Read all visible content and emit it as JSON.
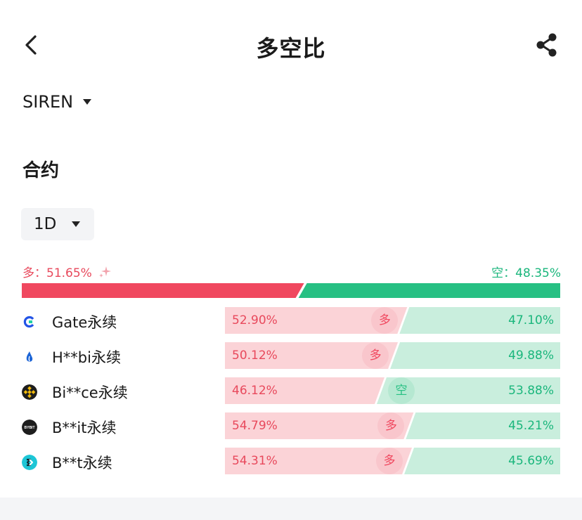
{
  "header": {
    "title": "多空比",
    "back_icon": "chevron-left-icon",
    "share_icon": "share-icon"
  },
  "symbol": {
    "value": "SIREN"
  },
  "section_title": "合约",
  "period": {
    "value": "1D"
  },
  "colors": {
    "long": "#f0485f",
    "short": "#27c083",
    "long_light": "#fbd3d7",
    "short_light": "#c9eedd"
  },
  "summary": {
    "long_label": "多：51.65%",
    "short_label": "空：48.35%",
    "long_ratio": 0.5165
  },
  "exchanges": [
    {
      "name": "Gate永续",
      "icon": "gate-logo-icon",
      "long_text": "52.90%",
      "short_text": "47.10%",
      "long_ratio": 0.529,
      "badge": "多"
    },
    {
      "name": "H**bi永续",
      "icon": "huobi-logo-icon",
      "long_text": "50.12%",
      "short_text": "49.88%",
      "long_ratio": 0.5012,
      "badge": "多"
    },
    {
      "name": "Bi**ce永续",
      "icon": "binance-logo-icon",
      "long_text": "46.12%",
      "short_text": "53.88%",
      "long_ratio": 0.4612,
      "badge": "空"
    },
    {
      "name": "B**it永续",
      "icon": "bybit-logo-icon",
      "long_text": "54.79%",
      "short_text": "45.21%",
      "long_ratio": 0.5479,
      "badge": "多"
    },
    {
      "name": "B**t永续",
      "icon": "bitget-logo-icon",
      "long_text": "54.31%",
      "short_text": "45.69%",
      "long_ratio": 0.5431,
      "badge": "多"
    }
  ],
  "bybit_logo_text": "BYBIT"
}
